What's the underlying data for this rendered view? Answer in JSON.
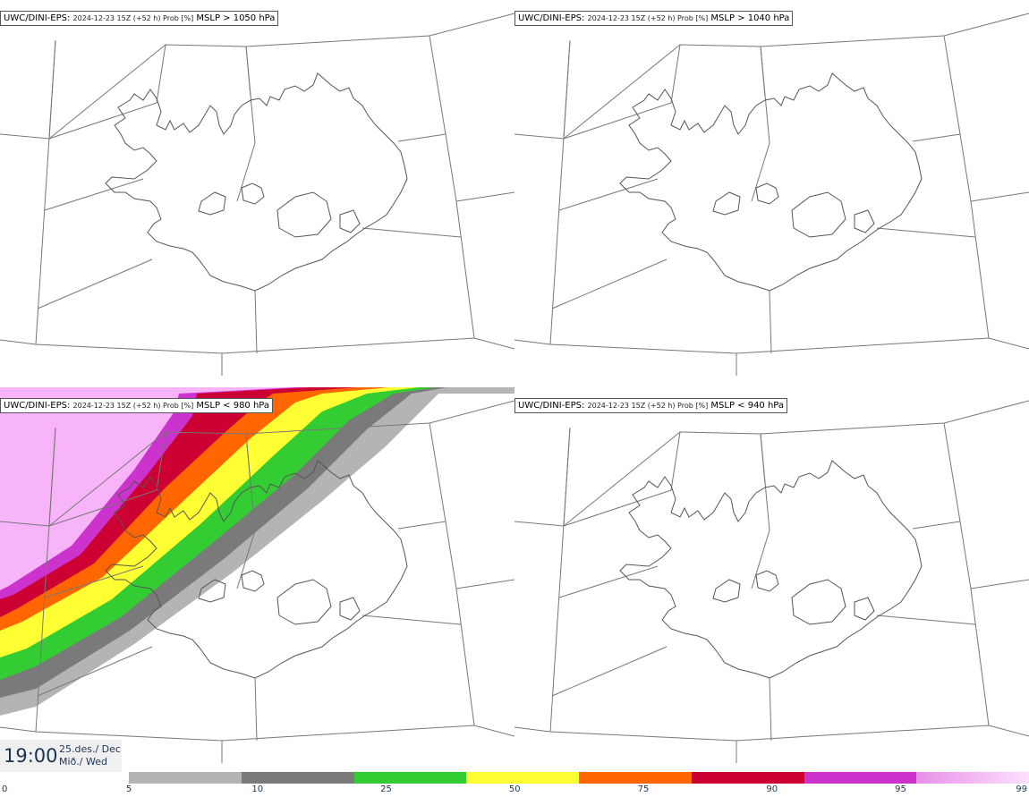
{
  "panels": [
    {
      "model": "UWC/DINI-EPS",
      "meta": "2024-12-23 15Z (+52 h) Prob [%]",
      "threshold": "MSLP > 1050 hPa",
      "filled": false
    },
    {
      "model": "UWC/DINI-EPS",
      "meta": "2024-12-23 15Z (+52 h) Prob [%]",
      "threshold": "MSLP > 1040 hPa",
      "filled": false
    },
    {
      "model": "UWC/DINI-EPS",
      "meta": "2024-12-23 15Z (+52 h) Prob [%]",
      "threshold": "MSLP < 980 hPa",
      "filled": true
    },
    {
      "model": "UWC/DINI-EPS",
      "meta": "2024-12-23 15Z (+52 h) Prob [%]",
      "threshold": "MSLP < 940 hPa",
      "filled": false
    }
  ],
  "valid_time": {
    "time": "19:00",
    "date_line1": "25.des./ Dec",
    "date_line2": "Mið./ Wed"
  },
  "colorbar": {
    "ticks": [
      "0",
      "5",
      "10",
      "25",
      "50",
      "75",
      "90",
      "95",
      "99"
    ],
    "colors": [
      "#b4b4b4",
      "#7a7a7a",
      "#33cc33",
      "#ffff33",
      "#ff6600",
      "#cc0033",
      "#cc33cc",
      "#f8b4f8"
    ]
  }
}
